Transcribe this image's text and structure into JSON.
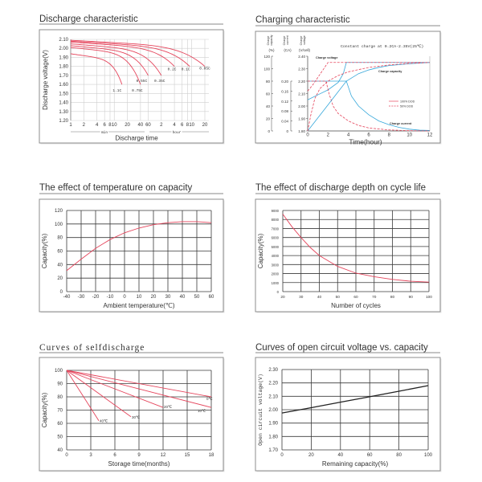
{
  "colors": {
    "red": "#e5455c",
    "blue": "#36a7da",
    "grid_dark": "#3a3a3a",
    "grid_light": "#cfcfcf",
    "line_black": "#222222"
  },
  "chart_data": [
    {
      "type": "line",
      "title": "Discharge characteristic",
      "xlabel": "Discharge time",
      "ylabel": "Discharge voltage(V)",
      "x_scale": "log",
      "x_unit_labels": [
        "min",
        "hour"
      ],
      "x_ticks_minutes": [
        1,
        2,
        4,
        6,
        8,
        10,
        20,
        40,
        60,
        120,
        240,
        360,
        480,
        600,
        1200
      ],
      "x_tick_labels": [
        "1",
        "2",
        "4",
        "6",
        "8",
        "10",
        "20",
        "40",
        "60",
        "2",
        "4",
        "6",
        "8",
        "10",
        "20"
      ],
      "y_ticks": [
        "2.10",
        "2.00",
        "1.90",
        "1.80",
        "1.70",
        "1.60",
        "1.50",
        "1.40",
        "1.30",
        "1.20"
      ],
      "ylim": [
        1.2,
        2.1
      ],
      "xlim_minutes": [
        1,
        1200
      ],
      "grid": true,
      "series": [
        {
          "name": "1.1C",
          "start_v": 1.94,
          "end_minutes": 15,
          "end_v": 1.6
        },
        {
          "name": "0.75C",
          "start_v": 2.01,
          "end_minutes": 40,
          "end_v": 1.6
        },
        {
          "name": "0.55C",
          "start_v": 2.03,
          "end_minutes": 60,
          "end_v": 1.7
        },
        {
          "name": "0.35C",
          "start_v": 2.05,
          "end_minutes": 120,
          "end_v": 1.7
        },
        {
          "name": "0.2C",
          "start_v": 2.07,
          "end_minutes": 240,
          "end_v": 1.8
        },
        {
          "name": "0.1C",
          "start_v": 2.08,
          "end_minutes": 540,
          "end_v": 1.8
        },
        {
          "name": "0.05C",
          "start_v": 2.09,
          "end_minutes": 1200,
          "end_v": 1.8
        }
      ]
    },
    {
      "type": "line",
      "title": "Charging characteristic",
      "xlabel": "Time(hour)",
      "annotation": "Constant charge at 0.2CA-2.35V(25℃)",
      "axis_headers": [
        {
          "title": "Charge capacity",
          "unit": "(%)"
        },
        {
          "title": "Charge current",
          "unit": "(CA)"
        },
        {
          "title": "Charge voltage",
          "unit": "(V/cell)"
        }
      ],
      "x_ticks": [
        0,
        2,
        4,
        6,
        8,
        10,
        12
      ],
      "xlim": [
        0,
        12
      ],
      "voltage_ticks": [
        "2.40",
        "2.30",
        "2.20",
        "2.10",
        "2.00",
        "1.90",
        "1.80"
      ],
      "current_ticks": [
        "0.20",
        "0.16",
        "0.12",
        "0.08",
        "0.04",
        "0"
      ],
      "capacity_ticks": [
        "120",
        "100",
        "80",
        "60",
        "40",
        "20",
        "0"
      ],
      "curve_labels": [
        "Charge voltage",
        "Charge capacity",
        "Charge current"
      ],
      "legend": [
        {
          "name": "100% DOD",
          "style": "solid"
        },
        {
          "name": "50% DOD",
          "style": "dashed"
        }
      ],
      "grid": false,
      "series": [
        {
          "name": "Charge voltage 100% DOD",
          "unit": "V",
          "style": "solid",
          "color": "blue",
          "points": [
            [
              0,
              2.05
            ],
            [
              1,
              2.09
            ],
            [
              2,
              2.13
            ],
            [
              3,
              2.19
            ],
            [
              3.5,
              2.26
            ],
            [
              3.8,
              2.35
            ],
            [
              12,
              2.35
            ]
          ]
        },
        {
          "name": "Charge voltage 50% DOD",
          "unit": "V",
          "style": "dashed",
          "color": "red",
          "points": [
            [
              0,
              2.12
            ],
            [
              0.5,
              2.17
            ],
            [
              1,
              2.23
            ],
            [
              1.5,
              2.29
            ],
            [
              2,
              2.35
            ],
            [
              12,
              2.35
            ]
          ]
        },
        {
          "name": "Charge current 100% DOD",
          "unit": "CA",
          "style": "solid",
          "color": "blue",
          "points": [
            [
              0,
              0.2
            ],
            [
              3.8,
              0.2
            ],
            [
              4.3,
              0.14
            ],
            [
              5,
              0.1
            ],
            [
              6,
              0.065
            ],
            [
              7,
              0.04
            ],
            [
              8,
              0.025
            ],
            [
              9,
              0.014
            ],
            [
              10,
              0.007
            ],
            [
              11,
              0.003
            ],
            [
              12,
              0.002
            ]
          ]
        },
        {
          "name": "Charge current 50% DOD",
          "unit": "CA",
          "style": "dashed",
          "color": "red",
          "points": [
            [
              0,
              0.2
            ],
            [
              1.8,
              0.2
            ],
            [
              2.1,
              0.15
            ],
            [
              2.5,
              0.1
            ],
            [
              3,
              0.07
            ],
            [
              4,
              0.04
            ],
            [
              5,
              0.022
            ],
            [
              6,
              0.012
            ],
            [
              8,
              0.004
            ],
            [
              10,
              0.001
            ],
            [
              12,
              0
            ]
          ]
        },
        {
          "name": "Charge capacity 100% DOD",
          "unit": "%",
          "style": "solid",
          "color": "blue",
          "points": [
            [
              0,
              0
            ],
            [
              1,
              21
            ],
            [
              2,
              42
            ],
            [
              3,
              63
            ],
            [
              3.8,
              80
            ],
            [
              5,
              92
            ],
            [
              6,
              98
            ],
            [
              7,
              102
            ],
            [
              8,
              105
            ],
            [
              10,
              108
            ],
            [
              12,
              110
            ]
          ]
        },
        {
          "name": "Charge capacity 50% DOD",
          "unit": "%",
          "style": "dashed",
          "color": "red",
          "points": [
            [
              0,
              0
            ],
            [
              0.3,
              25
            ],
            [
              0.7,
              52
            ],
            [
              1.2,
              68
            ],
            [
              2,
              80
            ],
            [
              3,
              89
            ],
            [
              4,
              95
            ],
            [
              6,
              102
            ],
            [
              8,
              106
            ],
            [
              10,
              108.5
            ],
            [
              12,
              110
            ]
          ]
        }
      ]
    },
    {
      "type": "line",
      "title": "The effect of temperature on capacity",
      "xlabel": "Ambient temperature(℃)",
      "ylabel": "Capacity(%)",
      "x_ticks": [
        -40,
        -30,
        -20,
        -10,
        0,
        10,
        20,
        30,
        40,
        50,
        60
      ],
      "y_ticks": [
        0,
        20,
        40,
        60,
        80,
        100,
        120
      ],
      "xlim": [
        -40,
        60
      ],
      "ylim": [
        0,
        120
      ],
      "grid": true,
      "series": [
        {
          "name": "Capacity",
          "color": "red",
          "points": [
            [
              -40,
              31
            ],
            [
              -30,
              48
            ],
            [
              -20,
              64
            ],
            [
              -10,
              77
            ],
            [
              0,
              87
            ],
            [
              10,
              94
            ],
            [
              20,
              99
            ],
            [
              30,
              102
            ],
            [
              40,
              103.5
            ],
            [
              50,
              103.5
            ],
            [
              60,
              102
            ]
          ]
        }
      ]
    },
    {
      "type": "line",
      "title": "The effect of discharge depth on cycle life",
      "xlabel": "Number of cycles",
      "ylabel": "Capacity(%)",
      "x_ticks": [
        20,
        30,
        40,
        50,
        60,
        70,
        80,
        90,
        100
      ],
      "y_ticks": [
        0,
        1000,
        2000,
        3000,
        4000,
        5000,
        6000,
        7000,
        8000,
        9000
      ],
      "xlim": [
        20,
        100
      ],
      "ylim": [
        0,
        9000
      ],
      "grid": true,
      "series": [
        {
          "name": "Cycle life",
          "color": "red",
          "points": [
            [
              20,
              8600
            ],
            [
              25,
              7200
            ],
            [
              30,
              6000
            ],
            [
              35,
              4900
            ],
            [
              40,
              4000
            ],
            [
              50,
              2800
            ],
            [
              60,
              2050
            ],
            [
              70,
              1650
            ],
            [
              80,
              1350
            ],
            [
              90,
              1150
            ],
            [
              100,
              1050
            ]
          ]
        }
      ]
    },
    {
      "type": "line",
      "title": "Curves of selfdischarge",
      "xlabel": "Storage time(months)",
      "ylabel": "Capacity(%)",
      "x_ticks": [
        0,
        3,
        6,
        9,
        12,
        15,
        18
      ],
      "y_ticks": [
        40,
        50,
        60,
        70,
        80,
        90,
        100
      ],
      "xlim": [
        0,
        18
      ],
      "ylim": [
        40,
        100
      ],
      "grid": true,
      "series": [
        {
          "name": "40℃",
          "color": "red",
          "points": [
            [
              0,
              100
            ],
            [
              4,
              62
            ]
          ]
        },
        {
          "name": "30℃",
          "color": "red",
          "points": [
            [
              0,
              100
            ],
            [
              8,
              65
            ]
          ]
        },
        {
          "name": "20℃",
          "color": "red",
          "points": [
            [
              0,
              100
            ],
            [
              12,
              72
            ]
          ]
        },
        {
          "name": "10℃",
          "color": "red",
          "points": [
            [
              0,
              100
            ],
            [
              18,
              72
            ]
          ]
        },
        {
          "name": "0℃",
          "color": "red",
          "points": [
            [
              0,
              100
            ],
            [
              18,
              80
            ]
          ]
        }
      ]
    },
    {
      "type": "line",
      "title": "Curves of open circuit voltage vs. capacity",
      "xlabel": "Remaining capacity(%)",
      "ylabel": "Open circuit voltage(V)",
      "x_ticks": [
        0,
        20,
        40,
        60,
        80,
        100
      ],
      "y_ticks": [
        "1.70",
        "1.80",
        "1.90",
        "2.00",
        "2.10",
        "2.20",
        "2.30"
      ],
      "xlim": [
        0,
        100
      ],
      "ylim": [
        1.7,
        2.3
      ],
      "grid": true,
      "series": [
        {
          "name": "OCV",
          "color": "line_black",
          "points": [
            [
              0,
              1.975
            ],
            [
              20,
              2.015
            ],
            [
              40,
              2.056
            ],
            [
              60,
              2.097
            ],
            [
              80,
              2.138
            ],
            [
              100,
              2.18
            ]
          ]
        }
      ]
    }
  ]
}
